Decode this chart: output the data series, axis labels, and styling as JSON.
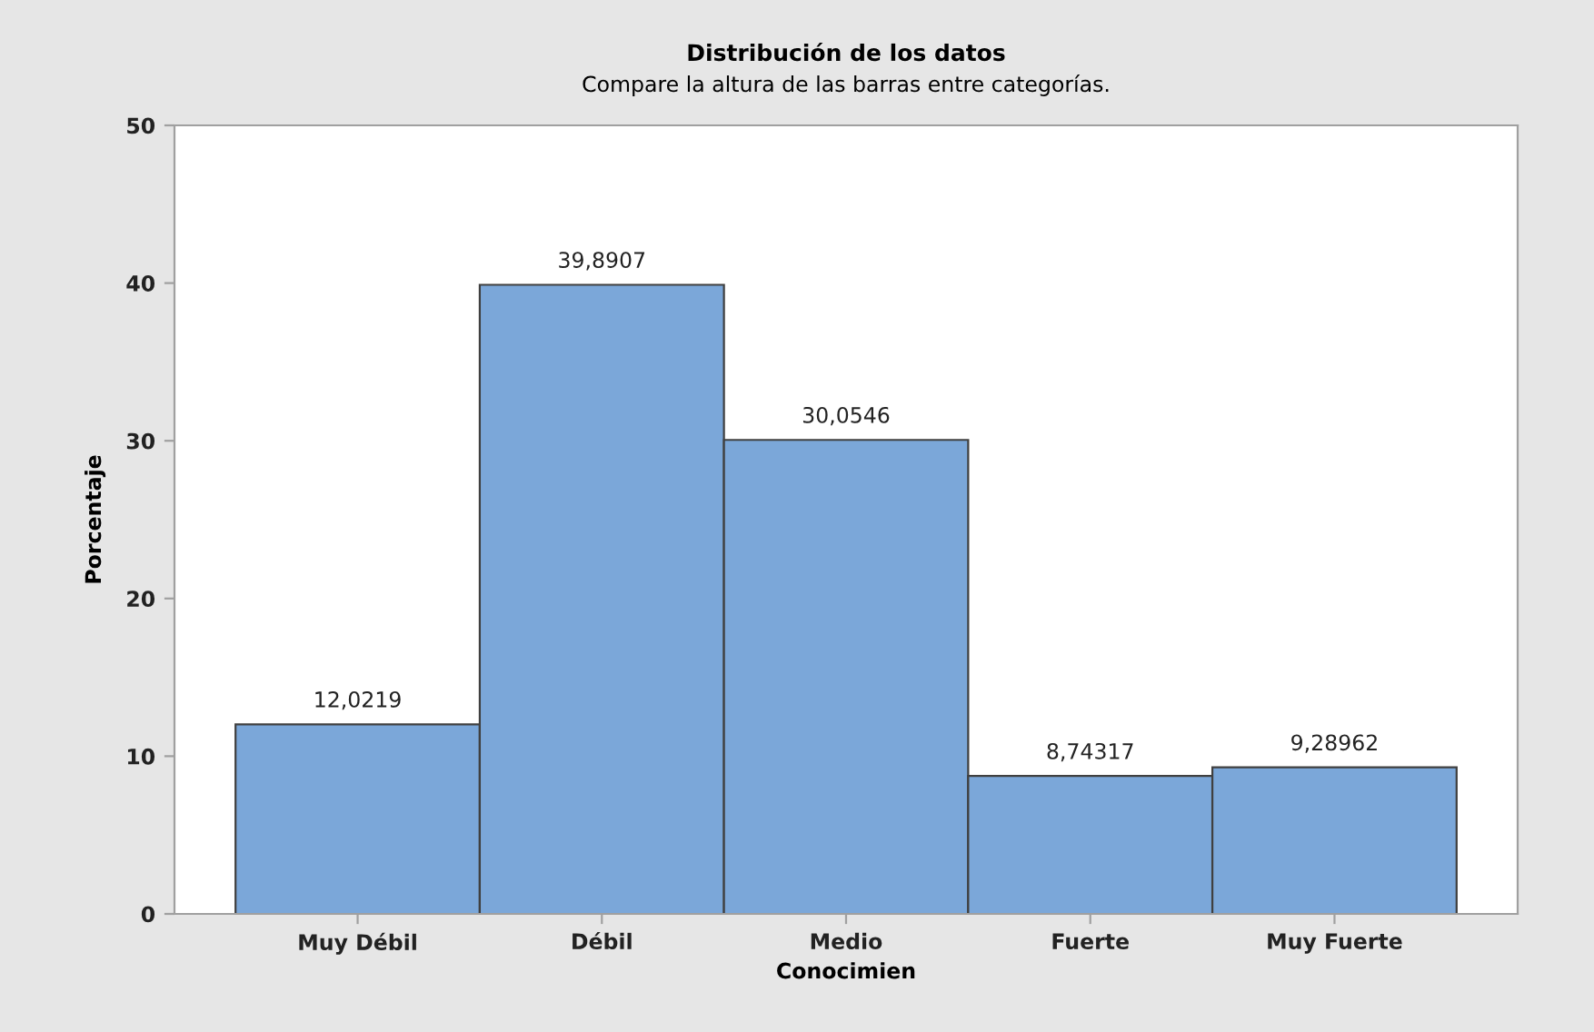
{
  "chart_data": {
    "type": "bar",
    "title": "Distribución de los datos",
    "subtitle": "Compare la altura de las barras entre categorías.",
    "xlabel": "Conocimien",
    "ylabel": "Porcentaje",
    "categories": [
      "Muy Débil",
      "Débil",
      "Medio",
      "Fuerte",
      "Muy Fuerte"
    ],
    "values": [
      12.0219,
      39.8907,
      30.0546,
      8.74317,
      9.28962
    ],
    "value_labels": [
      "12,0219",
      "39,8907",
      "30,0546",
      "8,74317",
      "9,28962"
    ],
    "color": "#7ba7d9",
    "ylim": [
      0,
      50
    ],
    "yticks": [
      0,
      10,
      20,
      30,
      40,
      50
    ],
    "grid": false,
    "legend": false
  }
}
